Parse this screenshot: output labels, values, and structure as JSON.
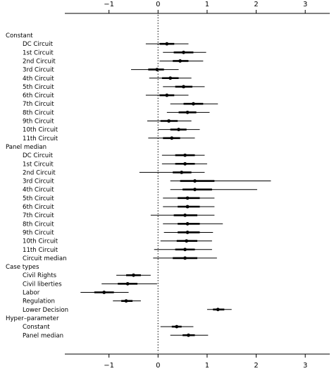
{
  "chart_data": {
    "type": "forest",
    "xlim": [
      -1.9,
      3.5
    ],
    "xticks": [
      -1,
      0,
      1,
      2,
      3
    ],
    "xtick_labels": [
      "−1",
      "0",
      "1",
      "2",
      "3"
    ],
    "reference_line": 0,
    "rows": [
      {
        "label": "Constant",
        "kind": "header"
      },
      {
        "label": "DC Circuit",
        "kind": "estimate",
        "est": 0.18,
        "inner": [
          0.03,
          0.33
        ],
        "outer": [
          -0.25,
          0.62
        ]
      },
      {
        "label": "1st Circuit",
        "kind": "estimate",
        "est": 0.52,
        "inner": [
          0.32,
          0.72
        ],
        "outer": [
          0.1,
          0.98
        ]
      },
      {
        "label": "2nd Circuit",
        "kind": "estimate",
        "est": 0.45,
        "inner": [
          0.3,
          0.62
        ],
        "outer": [
          0.03,
          0.92
        ]
      },
      {
        "label": "3rd Circuit",
        "kind": "estimate",
        "est": -0.02,
        "inner": [
          -0.2,
          0.12
        ],
        "outer": [
          -0.55,
          0.42
        ]
      },
      {
        "label": "4th Circuit",
        "kind": "estimate",
        "est": 0.25,
        "inner": [
          0.08,
          0.42
        ],
        "outer": [
          -0.18,
          0.68
        ]
      },
      {
        "label": "5th Circuit",
        "kind": "estimate",
        "est": 0.52,
        "inner": [
          0.35,
          0.7
        ],
        "outer": [
          0.1,
          0.95
        ]
      },
      {
        "label": "6th Circuit",
        "kind": "estimate",
        "est": 0.18,
        "inner": [
          0.03,
          0.33
        ],
        "outer": [
          -0.25,
          0.62
        ]
      },
      {
        "label": "7th Circuit",
        "kind": "estimate",
        "est": 0.72,
        "inner": [
          0.52,
          0.92
        ],
        "outer": [
          0.25,
          1.22
        ]
      },
      {
        "label": "8th Circuit",
        "kind": "estimate",
        "est": 0.6,
        "inner": [
          0.42,
          0.78
        ],
        "outer": [
          0.18,
          1.05
        ]
      },
      {
        "label": "9th Circuit",
        "kind": "estimate",
        "est": 0.22,
        "inner": [
          0.05,
          0.4
        ],
        "outer": [
          -0.22,
          0.68
        ]
      },
      {
        "label": "10th Circuit",
        "kind": "estimate",
        "est": 0.42,
        "inner": [
          0.25,
          0.58
        ],
        "outer": [
          0.0,
          0.85
        ]
      },
      {
        "label": "11th Circuit",
        "kind": "estimate",
        "est": 0.28,
        "inner": [
          0.1,
          0.45
        ],
        "outer": [
          -0.2,
          0.75
        ]
      },
      {
        "label": "Panel median",
        "kind": "header"
      },
      {
        "label": "DC Circuit",
        "kind": "estimate",
        "est": 0.55,
        "inner": [
          0.35,
          0.75
        ],
        "outer": [
          0.08,
          0.95
        ]
      },
      {
        "label": "1st Circuit",
        "kind": "estimate",
        "est": 0.55,
        "inner": [
          0.35,
          0.75
        ],
        "outer": [
          0.08,
          1.0
        ]
      },
      {
        "label": "2nd Circuit",
        "kind": "estimate",
        "est": 0.48,
        "inner": [
          0.3,
          0.68
        ],
        "outer": [
          -0.38,
          0.95
        ]
      },
      {
        "label": "3rd Circuit",
        "kind": "estimate",
        "est": 0.75,
        "inner": [
          0.45,
          1.15
        ],
        "outer": [
          0.25,
          2.3
        ]
      },
      {
        "label": "4th Circuit",
        "kind": "estimate",
        "est": 0.75,
        "inner": [
          0.5,
          1.1
        ],
        "outer": [
          0.25,
          2.02
        ]
      },
      {
        "label": "5th Circuit",
        "kind": "estimate",
        "est": 0.6,
        "inner": [
          0.4,
          0.85
        ],
        "outer": [
          0.1,
          1.15
        ]
      },
      {
        "label": "6th Circuit",
        "kind": "estimate",
        "est": 0.6,
        "inner": [
          0.4,
          0.85
        ],
        "outer": [
          0.1,
          1.15
        ]
      },
      {
        "label": "7th Circuit",
        "kind": "estimate",
        "est": 0.55,
        "inner": [
          0.32,
          0.8
        ],
        "outer": [
          -0.15,
          1.15
        ]
      },
      {
        "label": "8th Circuit",
        "kind": "estimate",
        "est": 0.6,
        "inner": [
          0.4,
          0.85
        ],
        "outer": [
          0.1,
          1.32
        ]
      },
      {
        "label": "9th Circuit",
        "kind": "estimate",
        "est": 0.6,
        "inner": [
          0.4,
          0.85
        ],
        "outer": [
          0.12,
          1.12
        ]
      },
      {
        "label": "10th Circuit",
        "kind": "estimate",
        "est": 0.58,
        "inner": [
          0.38,
          0.8
        ],
        "outer": [
          0.05,
          1.1
        ]
      },
      {
        "label": "11th Circuit",
        "kind": "estimate",
        "est": 0.55,
        "inner": [
          0.35,
          0.75
        ],
        "outer": [
          -0.08,
          1.1
        ]
      },
      {
        "label": "Circuit median",
        "kind": "estimate",
        "est": 0.55,
        "inner": [
          0.3,
          0.8
        ],
        "outer": [
          -0.1,
          1.2
        ]
      },
      {
        "label": "Case types",
        "kind": "header"
      },
      {
        "label": "Civil Rights",
        "kind": "estimate",
        "est": -0.5,
        "inner": [
          -0.65,
          -0.35
        ],
        "outer": [
          -0.85,
          -0.15
        ]
      },
      {
        "label": "Civil liberties",
        "kind": "estimate",
        "est": -0.62,
        "inner": [
          -0.82,
          -0.42
        ],
        "outer": [
          -1.15,
          -0.02
        ]
      },
      {
        "label": "Labor",
        "kind": "estimate",
        "est": -1.1,
        "inner": [
          -1.3,
          -0.9
        ],
        "outer": [
          -1.58,
          -0.6
        ]
      },
      {
        "label": "Regulation",
        "kind": "estimate",
        "est": -0.65,
        "inner": [
          -0.75,
          -0.52
        ],
        "outer": [
          -0.92,
          -0.35
        ]
      },
      {
        "label": "Lower Decision",
        "kind": "estimate",
        "est": 1.22,
        "inner": [
          1.12,
          1.35
        ],
        "outer": [
          1.0,
          1.5
        ]
      },
      {
        "label": "Hyper–parameter",
        "kind": "header"
      },
      {
        "label": "Constant",
        "kind": "estimate",
        "est": 0.38,
        "inner": [
          0.28,
          0.48
        ],
        "outer": [
          0.05,
          0.72
        ]
      },
      {
        "label": "Panel median",
        "kind": "estimate",
        "est": 0.62,
        "inner": [
          0.5,
          0.75
        ],
        "outer": [
          0.25,
          1.02
        ]
      }
    ]
  }
}
